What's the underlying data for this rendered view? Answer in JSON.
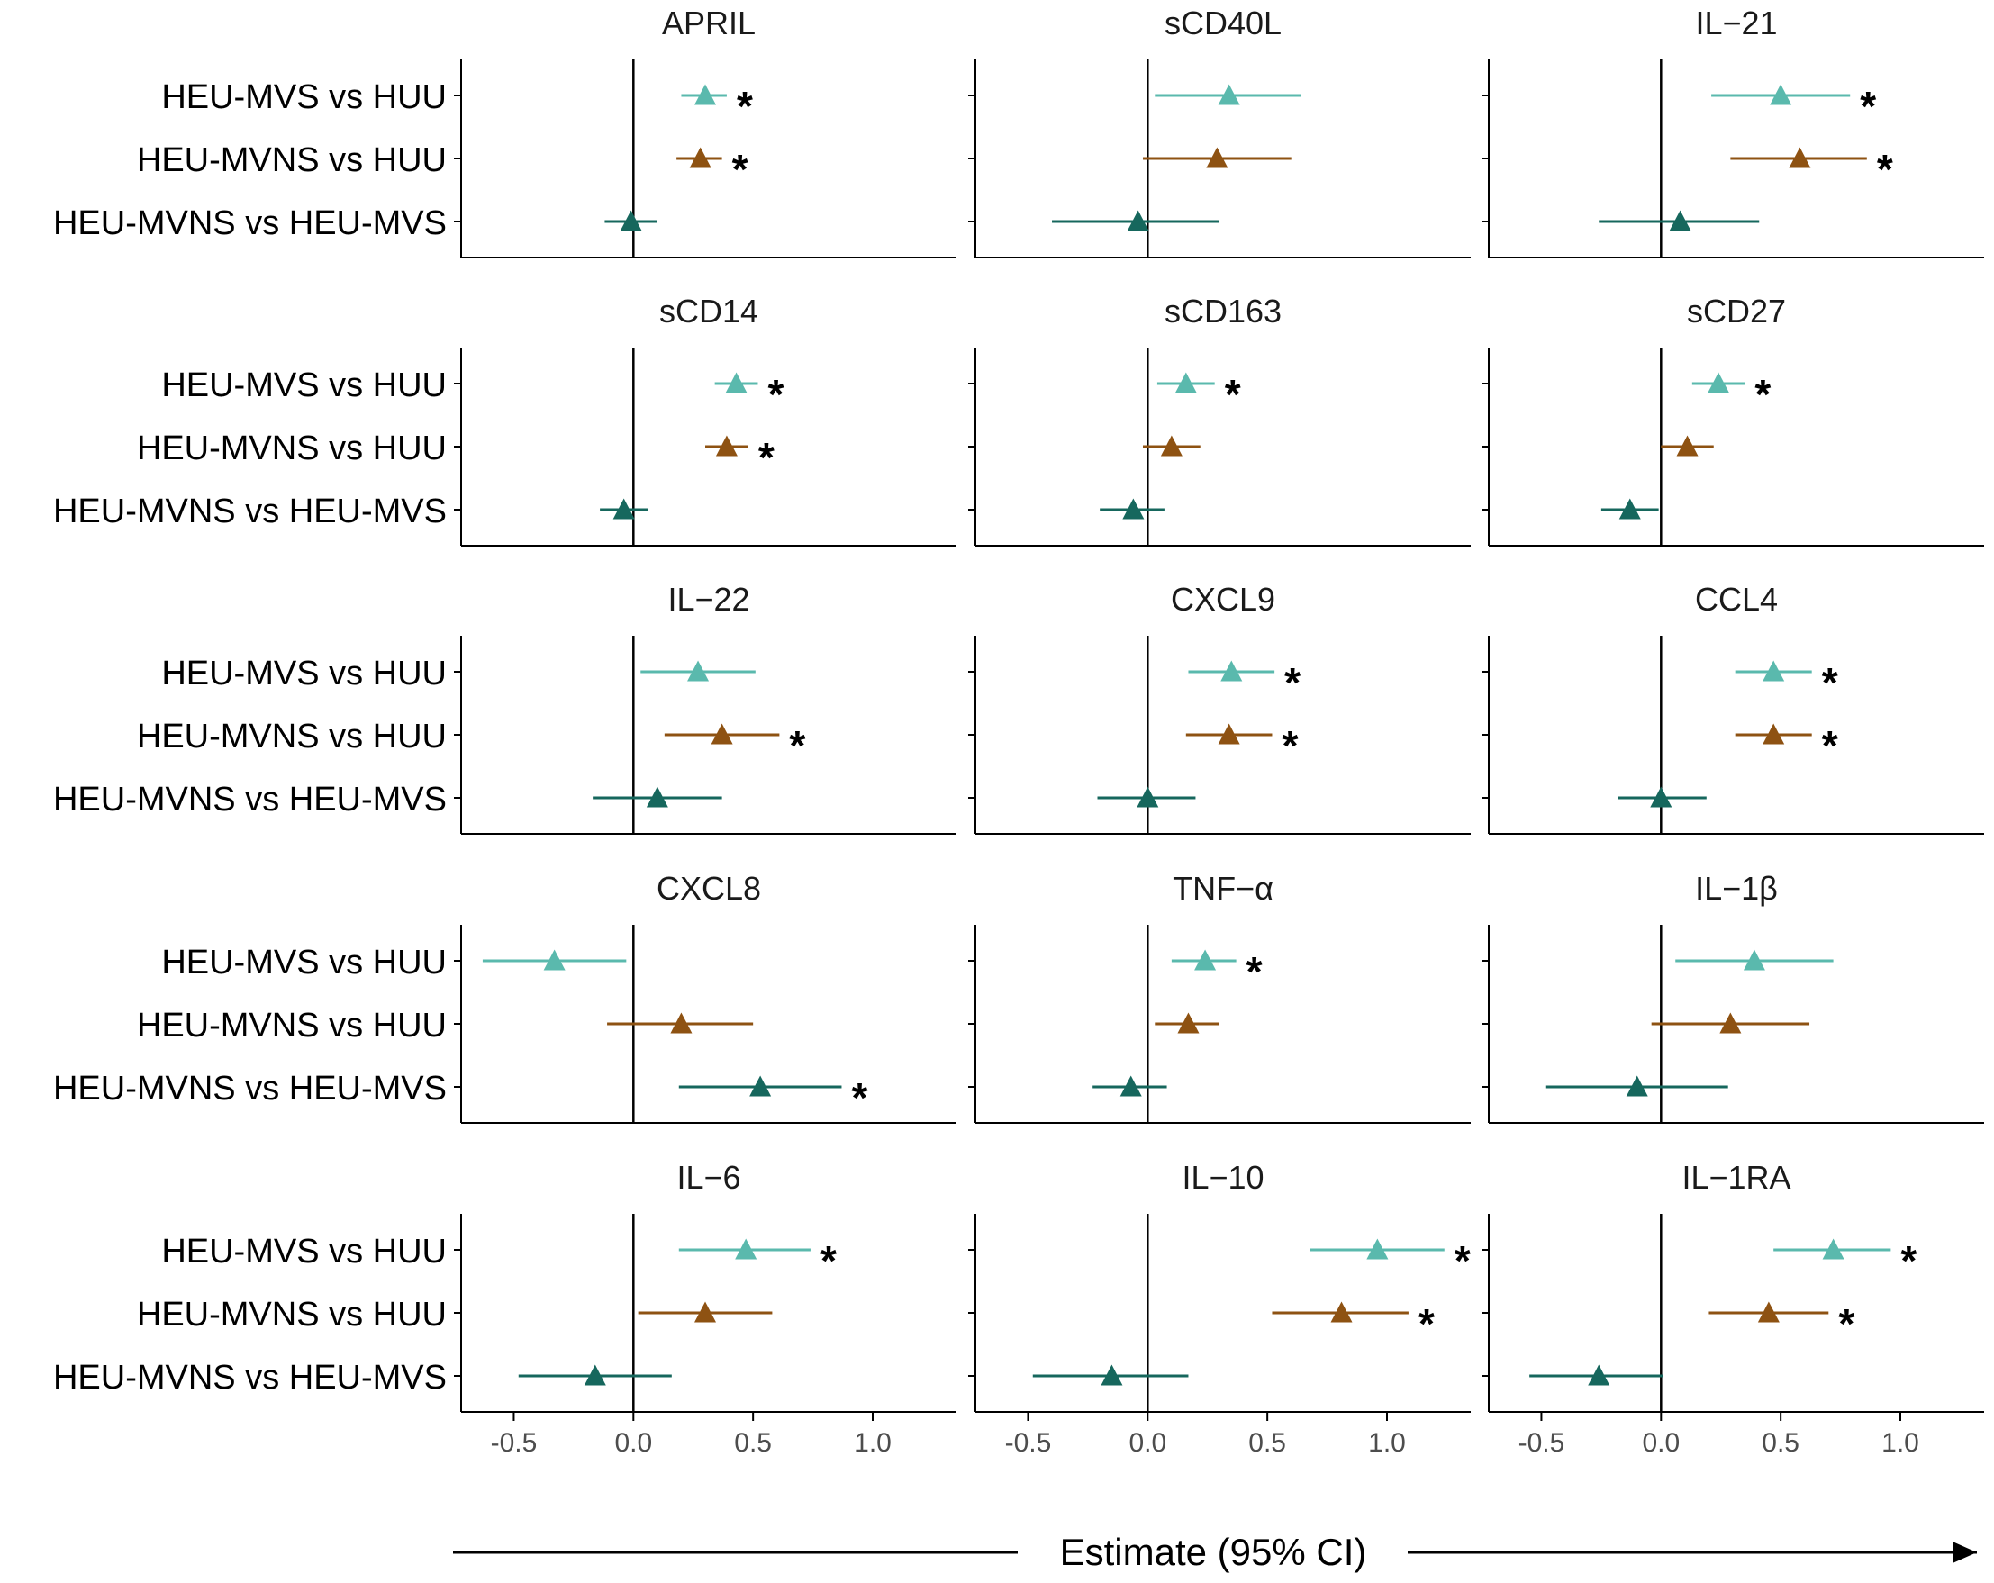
{
  "chart_data": {
    "type": "forest",
    "x_label": "Estimate (95% CI)",
    "x_range": [
      -0.72,
      1.35
    ],
    "x_ticks": [
      -0.5,
      0.0,
      0.5,
      1.0
    ],
    "x_tick_labels": [
      "-0.5",
      "0.0",
      "0.5",
      "1.0"
    ],
    "comparisons": [
      "HEU-MVS vs HUU",
      "HEU-MVNS vs HUU",
      "HEU-MVNS vs HEU-MVS"
    ],
    "colors": {
      "HEU-MVS vs HUU": "#5ab9ad",
      "HEU-MVNS vs HUU": "#8e5212",
      "HEU-MVNS vs HEU-MVS": "#16675d"
    },
    "significance_marker": "*",
    "panels": [
      {
        "title": "APRIL",
        "rows": [
          {
            "comparison": "HEU-MVS vs HUU",
            "estimate": 0.3,
            "lower": 0.2,
            "upper": 0.39,
            "significant": true
          },
          {
            "comparison": "HEU-MVNS vs HUU",
            "estimate": 0.28,
            "lower": 0.18,
            "upper": 0.37,
            "significant": true
          },
          {
            "comparison": "HEU-MVNS vs HEU-MVS",
            "estimate": -0.01,
            "lower": -0.12,
            "upper": 0.1,
            "significant": false
          }
        ]
      },
      {
        "title": "sCD40L",
        "rows": [
          {
            "comparison": "HEU-MVS vs HUU",
            "estimate": 0.34,
            "lower": 0.03,
            "upper": 0.64,
            "significant": false
          },
          {
            "comparison": "HEU-MVNS vs HUU",
            "estimate": 0.29,
            "lower": -0.02,
            "upper": 0.6,
            "significant": false
          },
          {
            "comparison": "HEU-MVNS vs HEU-MVS",
            "estimate": -0.04,
            "lower": -0.4,
            "upper": 0.3,
            "significant": false
          }
        ]
      },
      {
        "title": "IL−21",
        "rows": [
          {
            "comparison": "HEU-MVS vs HUU",
            "estimate": 0.5,
            "lower": 0.21,
            "upper": 0.79,
            "significant": true
          },
          {
            "comparison": "HEU-MVNS vs HUU",
            "estimate": 0.58,
            "lower": 0.29,
            "upper": 0.86,
            "significant": true
          },
          {
            "comparison": "HEU-MVNS vs HEU-MVS",
            "estimate": 0.08,
            "lower": -0.26,
            "upper": 0.41,
            "significant": false
          }
        ]
      },
      {
        "title": "sCD14",
        "rows": [
          {
            "comparison": "HEU-MVS vs HUU",
            "estimate": 0.43,
            "lower": 0.34,
            "upper": 0.52,
            "significant": true
          },
          {
            "comparison": "HEU-MVNS vs HUU",
            "estimate": 0.39,
            "lower": 0.3,
            "upper": 0.48,
            "significant": true
          },
          {
            "comparison": "HEU-MVNS vs HEU-MVS",
            "estimate": -0.04,
            "lower": -0.14,
            "upper": 0.06,
            "significant": false
          }
        ]
      },
      {
        "title": "sCD163",
        "rows": [
          {
            "comparison": "HEU-MVS vs HUU",
            "estimate": 0.16,
            "lower": 0.04,
            "upper": 0.28,
            "significant": true
          },
          {
            "comparison": "HEU-MVNS vs HUU",
            "estimate": 0.1,
            "lower": -0.02,
            "upper": 0.22,
            "significant": false
          },
          {
            "comparison": "HEU-MVNS vs HEU-MVS",
            "estimate": -0.06,
            "lower": -0.2,
            "upper": 0.07,
            "significant": false
          }
        ]
      },
      {
        "title": "sCD27",
        "rows": [
          {
            "comparison": "HEU-MVS vs HUU",
            "estimate": 0.24,
            "lower": 0.13,
            "upper": 0.35,
            "significant": true
          },
          {
            "comparison": "HEU-MVNS vs HUU",
            "estimate": 0.11,
            "lower": 0.0,
            "upper": 0.22,
            "significant": false
          },
          {
            "comparison": "HEU-MVNS vs HEU-MVS",
            "estimate": -0.13,
            "lower": -0.25,
            "upper": -0.01,
            "significant": false
          }
        ]
      },
      {
        "title": "IL−22",
        "rows": [
          {
            "comparison": "HEU-MVS vs HUU",
            "estimate": 0.27,
            "lower": 0.03,
            "upper": 0.51,
            "significant": false
          },
          {
            "comparison": "HEU-MVNS vs HUU",
            "estimate": 0.37,
            "lower": 0.13,
            "upper": 0.61,
            "significant": true
          },
          {
            "comparison": "HEU-MVNS vs HEU-MVS",
            "estimate": 0.1,
            "lower": -0.17,
            "upper": 0.37,
            "significant": false
          }
        ]
      },
      {
        "title": "CXCL9",
        "rows": [
          {
            "comparison": "HEU-MVS vs HUU",
            "estimate": 0.35,
            "lower": 0.17,
            "upper": 0.53,
            "significant": true
          },
          {
            "comparison": "HEU-MVNS vs HUU",
            "estimate": 0.34,
            "lower": 0.16,
            "upper": 0.52,
            "significant": true
          },
          {
            "comparison": "HEU-MVNS vs HEU-MVS",
            "estimate": 0.0,
            "lower": -0.21,
            "upper": 0.2,
            "significant": false
          }
        ]
      },
      {
        "title": "CCL4",
        "rows": [
          {
            "comparison": "HEU-MVS vs HUU",
            "estimate": 0.47,
            "lower": 0.31,
            "upper": 0.63,
            "significant": true
          },
          {
            "comparison": "HEU-MVNS vs HUU",
            "estimate": 0.47,
            "lower": 0.31,
            "upper": 0.63,
            "significant": true
          },
          {
            "comparison": "HEU-MVNS vs HEU-MVS",
            "estimate": 0.0,
            "lower": -0.18,
            "upper": 0.19,
            "significant": false
          }
        ]
      },
      {
        "title": "CXCL8",
        "rows": [
          {
            "comparison": "HEU-MVS vs HUU",
            "estimate": -0.33,
            "lower": -0.63,
            "upper": -0.03,
            "significant": false
          },
          {
            "comparison": "HEU-MVNS vs HUU",
            "estimate": 0.2,
            "lower": -0.11,
            "upper": 0.5,
            "significant": false
          },
          {
            "comparison": "HEU-MVNS vs HEU-MVS",
            "estimate": 0.53,
            "lower": 0.19,
            "upper": 0.87,
            "significant": true
          }
        ]
      },
      {
        "title": "TNF−α",
        "rows": [
          {
            "comparison": "HEU-MVS vs HUU",
            "estimate": 0.24,
            "lower": 0.1,
            "upper": 0.37,
            "significant": true
          },
          {
            "comparison": "HEU-MVNS vs HUU",
            "estimate": 0.17,
            "lower": 0.03,
            "upper": 0.3,
            "significant": false
          },
          {
            "comparison": "HEU-MVNS vs HEU-MVS",
            "estimate": -0.07,
            "lower": -0.23,
            "upper": 0.08,
            "significant": false
          }
        ]
      },
      {
        "title": "IL−1β",
        "rows": [
          {
            "comparison": "HEU-MVS vs HUU",
            "estimate": 0.39,
            "lower": 0.06,
            "upper": 0.72,
            "significant": false
          },
          {
            "comparison": "HEU-MVNS vs HUU",
            "estimate": 0.29,
            "lower": -0.04,
            "upper": 0.62,
            "significant": false
          },
          {
            "comparison": "HEU-MVNS vs HEU-MVS",
            "estimate": -0.1,
            "lower": -0.48,
            "upper": 0.28,
            "significant": false
          }
        ]
      },
      {
        "title": "IL−6",
        "rows": [
          {
            "comparison": "HEU-MVS vs HUU",
            "estimate": 0.47,
            "lower": 0.19,
            "upper": 0.74,
            "significant": true
          },
          {
            "comparison": "HEU-MVNS vs HUU",
            "estimate": 0.3,
            "lower": 0.02,
            "upper": 0.58,
            "significant": false
          },
          {
            "comparison": "HEU-MVNS vs HEU-MVS",
            "estimate": -0.16,
            "lower": -0.48,
            "upper": 0.16,
            "significant": false
          }
        ]
      },
      {
        "title": "IL−10",
        "rows": [
          {
            "comparison": "HEU-MVS vs HUU",
            "estimate": 0.96,
            "lower": 0.68,
            "upper": 1.24,
            "significant": true
          },
          {
            "comparison": "HEU-MVNS vs HUU",
            "estimate": 0.81,
            "lower": 0.52,
            "upper": 1.09,
            "significant": true
          },
          {
            "comparison": "HEU-MVNS vs HEU-MVS",
            "estimate": -0.15,
            "lower": -0.48,
            "upper": 0.17,
            "significant": false
          }
        ]
      },
      {
        "title": "IL−1RA",
        "rows": [
          {
            "comparison": "HEU-MVS vs HUU",
            "estimate": 0.72,
            "lower": 0.47,
            "upper": 0.96,
            "significant": true
          },
          {
            "comparison": "HEU-MVNS vs HUU",
            "estimate": 0.45,
            "lower": 0.2,
            "upper": 0.7,
            "significant": true
          },
          {
            "comparison": "HEU-MVNS vs HEU-MVS",
            "estimate": -0.26,
            "lower": -0.55,
            "upper": 0.01,
            "significant": false
          }
        ]
      }
    ]
  }
}
